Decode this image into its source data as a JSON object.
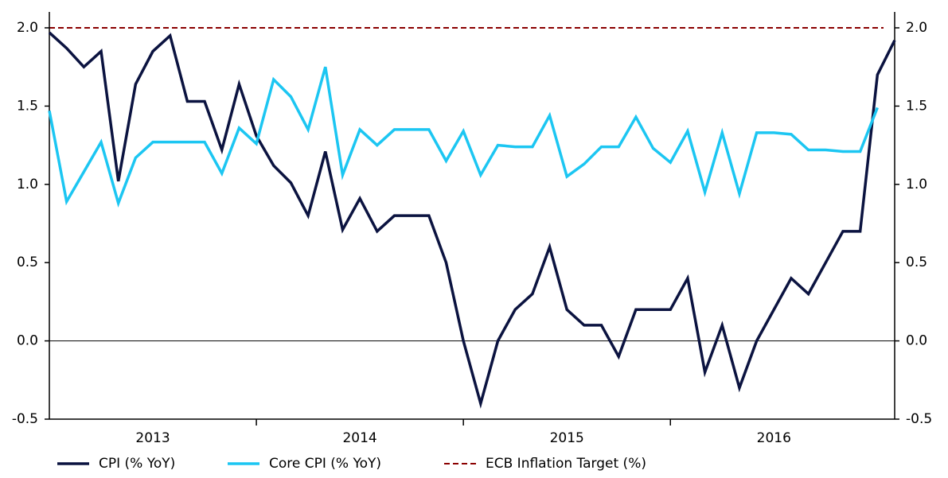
{
  "chart_data": {
    "type": "line",
    "categories": [
      null,
      null,
      null,
      null,
      null,
      null,
      null,
      null,
      null,
      null,
      null,
      null,
      null,
      null,
      null,
      null,
      null,
      null,
      null,
      null,
      null,
      null,
      null,
      null,
      null,
      null,
      null,
      null,
      null,
      null,
      null,
      null,
      null,
      null,
      null,
      null,
      null,
      null,
      null,
      null,
      null,
      null,
      null,
      null,
      null,
      null,
      null,
      null,
      null,
      null
    ],
    "x_groups": [
      "2013",
      "2014",
      "2015",
      "2016"
    ],
    "series": [
      {
        "name": "CPI (% YoY)",
        "color": "#0b1340",
        "values": [
          1.97,
          1.87,
          1.75,
          1.85,
          1.02,
          1.64,
          1.85,
          1.95,
          1.53,
          1.53,
          1.22,
          1.64,
          1.31,
          1.12,
          1.01,
          0.8,
          1.21,
          0.71,
          0.91,
          0.7,
          0.8,
          0.8,
          0.8,
          0.5,
          0.0,
          -0.4,
          0.0,
          0.2,
          0.3,
          0.6,
          0.2,
          0.1,
          0.1,
          -0.1,
          0.2,
          0.2,
          0.2,
          0.4,
          -0.2,
          0.1,
          -0.3,
          0.0,
          0.2,
          0.4,
          0.3,
          0.5,
          0.7,
          0.7,
          1.7,
          1.92
        ]
      },
      {
        "name": "Core CPI (% YoY)",
        "color": "#1cc6f2",
        "values": [
          1.47,
          0.89,
          1.08,
          1.27,
          0.88,
          1.17,
          1.27,
          1.27,
          1.27,
          1.27,
          1.07,
          1.36,
          1.26,
          1.67,
          1.56,
          1.35,
          1.75,
          1.06,
          1.35,
          1.25,
          1.35,
          1.35,
          1.35,
          1.15,
          1.34,
          1.06,
          1.25,
          1.24,
          1.24,
          1.44,
          1.05,
          1.13,
          1.24,
          1.24,
          1.43,
          1.23,
          1.14,
          1.34,
          0.95,
          1.33,
          0.94,
          1.33,
          1.33,
          1.32,
          1.22,
          1.22,
          1.21,
          1.21,
          1.49,
          null
        ]
      }
    ],
    "target": {
      "name": "ECB Inflation Target (%)",
      "color": "#8b0000",
      "value": 2.0
    },
    "ylim": [
      -0.5,
      2.0
    ],
    "yticks": [
      {
        "value": -0.5,
        "label": "-0.5"
      },
      {
        "value": 0,
        "label": "0.0"
      },
      {
        "value": 0.5,
        "label": "0.5"
      },
      {
        "value": 1,
        "label": "1.0"
      },
      {
        "value": 1.5,
        "label": "1.5"
      },
      {
        "value": 2,
        "label": "2.0"
      }
    ],
    "y2lim": [
      -0.5,
      2.0
    ],
    "y2ticks": [
      {
        "value": -0.5,
        "label": "-0.5"
      },
      {
        "value": 0,
        "label": "0.0"
      },
      {
        "value": 0.5,
        "label": "0.5"
      },
      {
        "value": 1,
        "label": "1.0"
      },
      {
        "value": 1.5,
        "label": "1.5"
      },
      {
        "value": 2,
        "label": "2.0"
      }
    ],
    "legend": "bottom"
  }
}
